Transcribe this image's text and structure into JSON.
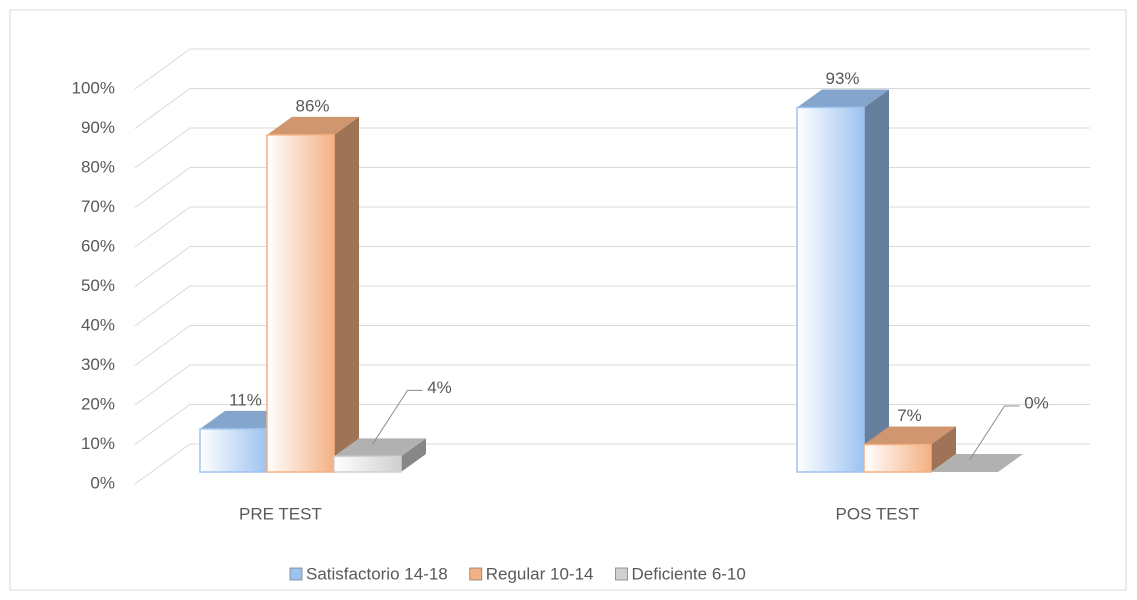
{
  "chart_data": {
    "type": "bar3d",
    "categories": [
      "PRE TEST",
      "POS TEST"
    ],
    "series": [
      {
        "name": "Satisfactorio 14-18",
        "color": "#9dc3f0",
        "values": [
          11,
          93
        ],
        "value_labels": [
          "11%",
          "93%"
        ]
      },
      {
        "name": "Regular 10-14",
        "color": "#f4b183",
        "values": [
          86,
          7
        ],
        "value_labels": [
          "86%",
          "7%"
        ]
      },
      {
        "name": "Deficiente 6-10",
        "color": "#d0d0d0",
        "values": [
          4,
          0
        ],
        "value_labels": [
          "4%",
          "0%"
        ]
      }
    ],
    "ylim": [
      0,
      100
    ],
    "yticks": [
      {
        "value": 0,
        "label": "0%"
      },
      {
        "value": 10,
        "label": "10%"
      },
      {
        "value": 20,
        "label": "20%"
      },
      {
        "value": 30,
        "label": "30%"
      },
      {
        "value": 40,
        "label": "40%"
      },
      {
        "value": 50,
        "label": "50%"
      },
      {
        "value": 60,
        "label": "60%"
      },
      {
        "value": 70,
        "label": "70%"
      },
      {
        "value": 80,
        "label": "80%"
      },
      {
        "value": 90,
        "label": "90%"
      },
      {
        "value": 100,
        "label": "100%"
      }
    ],
    "grid": true,
    "legend": "bottom"
  }
}
